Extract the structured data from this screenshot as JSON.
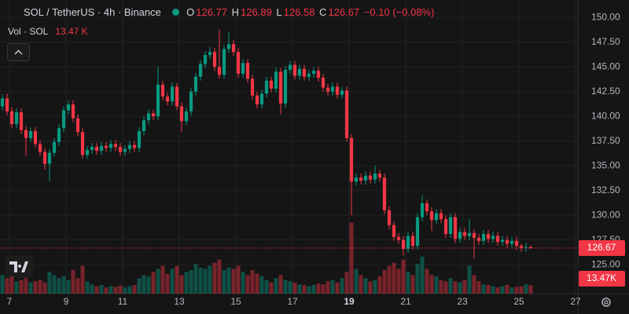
{
  "chart_data": {
    "type": "candlestick",
    "title": "SOL / TetherUS · 4h · Binance",
    "header": {
      "o": "O",
      "h": "H",
      "l": "L",
      "c": "C",
      "change": "−0.10 (−0.08%)"
    },
    "legend": {
      "volume_title": "Vol · SOL",
      "volume": "13.47 K"
    },
    "volume_axis_label": "13.47K",
    "up_color": "#089981",
    "down_color": "#f23645",
    "grid": true,
    "xlim": [
      -0.5,
      122
    ],
    "xticks": [
      {
        "value": 1.5,
        "label": "7"
      },
      {
        "value": 13.5,
        "label": "9"
      },
      {
        "value": 25.5,
        "label": "11"
      },
      {
        "value": 37.5,
        "label": "13"
      },
      {
        "value": 49.5,
        "label": "15"
      },
      {
        "value": 61.5,
        "label": "17"
      },
      {
        "value": 73.5,
        "label": "19"
      },
      {
        "value": 85.5,
        "label": "21"
      },
      {
        "value": 97.5,
        "label": "23"
      },
      {
        "value": 109.5,
        "label": "25"
      },
      {
        "value": 121.5,
        "label": "27"
      }
    ],
    "ylim": [
      122.07,
      151.76
    ],
    "yticks": [
      {
        "value": 125,
        "label": "125.00"
      },
      {
        "value": 127.5,
        "label": "127.50"
      },
      {
        "value": 130,
        "label": "130.00"
      },
      {
        "value": 132.5,
        "label": "132.50"
      },
      {
        "value": 135,
        "label": "135.00"
      },
      {
        "value": 137.5,
        "label": "137.50"
      },
      {
        "value": 140,
        "label": "140.00"
      },
      {
        "value": 142.5,
        "label": "142.50"
      },
      {
        "value": 145,
        "label": "145.00"
      },
      {
        "value": 147.5,
        "label": "147.50"
      },
      {
        "value": 150,
        "label": "150.00"
      }
    ],
    "vlim": [
      0,
      475
    ],
    "open": [
      141.0,
      141.8,
      140.5,
      139.2,
      140.4,
      138.6,
      137.8,
      138.5,
      137.2,
      136.4,
      135.2,
      136.3,
      137.4,
      138.8,
      140.6,
      141.2,
      139.8,
      138.4,
      136.1,
      136.6,
      136.9,
      136.5,
      137.0,
      136.8,
      137.2,
      136.9,
      136.4,
      136.7,
      137.1,
      136.8,
      138.5,
      139.6,
      140.3,
      140.0,
      143.2,
      142.0,
      141.5,
      143.0,
      141.0,
      139.5,
      140.5,
      142.5,
      144.0,
      145.3,
      146.2,
      146.5,
      145.0,
      144.2,
      146.8,
      147.3,
      146.5,
      144.3,
      145.4,
      143.8,
      142.1,
      141.2,
      142.3,
      143.6,
      142.8,
      144.5,
      141.3,
      144.7,
      145.2,
      144.1,
      144.8,
      144.0,
      144.3,
      144.6,
      143.9,
      142.9,
      142.5,
      143.0,
      142.2,
      142.6,
      137.8,
      133.4,
      133.8,
      133.5,
      134.0,
      133.6,
      134.2,
      133.8,
      130.5,
      129.0,
      127.8,
      127.5,
      126.6,
      127.9,
      126.9,
      129.8,
      131.2,
      130.4,
      129.5,
      130.2,
      129.6,
      128.1,
      129.8,
      127.6,
      128.3,
      127.9,
      128.2,
      127.7,
      127.4,
      128.1,
      127.6,
      127.9,
      127.3,
      127.5,
      127.1,
      127.4,
      126.9,
      126.7,
      126.77
    ],
    "high": [
      142.2,
      142.3,
      140.9,
      140.8,
      140.8,
      139.0,
      138.9,
      138.9,
      137.6,
      136.8,
      136.7,
      137.8,
      139.2,
      141.0,
      141.6,
      141.6,
      140.2,
      138.8,
      137.0,
      137.3,
      137.3,
      137.4,
      137.4,
      137.6,
      137.6,
      137.3,
      137.1,
      137.5,
      137.5,
      138.9,
      140.0,
      140.7,
      140.7,
      145.0,
      143.6,
      142.4,
      143.4,
      143.4,
      141.4,
      140.9,
      142.9,
      144.4,
      145.7,
      146.6,
      147.0,
      146.9,
      148.8,
      147.2,
      148.5,
      147.7,
      146.9,
      145.8,
      145.8,
      144.2,
      142.5,
      142.7,
      144.0,
      144.0,
      144.9,
      144.9,
      145.1,
      145.6,
      145.6,
      145.2,
      145.2,
      144.7,
      145.0,
      145.0,
      144.3,
      143.3,
      143.4,
      143.4,
      143.0,
      143.0,
      138.2,
      134.2,
      134.2,
      134.4,
      134.4,
      135.0,
      134.6,
      134.2,
      130.9,
      129.4,
      128.2,
      127.9,
      128.3,
      128.3,
      130.2,
      132.0,
      131.6,
      130.8,
      130.6,
      130.6,
      130.0,
      130.2,
      130.2,
      128.7,
      128.7,
      129.6,
      128.6,
      128.1,
      128.5,
      128.5,
      128.3,
      128.3,
      127.9,
      127.9,
      127.8,
      127.8,
      127.1,
      127.2,
      126.89
    ],
    "low": [
      140.6,
      140.1,
      138.8,
      138.8,
      138.2,
      136.0,
      137.4,
      136.8,
      136.0,
      134.6,
      133.4,
      135.9,
      137.0,
      138.4,
      140.2,
      139.4,
      138.0,
      135.7,
      135.7,
      136.2,
      136.1,
      136.1,
      136.4,
      136.4,
      136.5,
      136.0,
      136.0,
      136.3,
      136.4,
      136.4,
      138.1,
      139.2,
      139.6,
      139.6,
      141.6,
      141.1,
      141.1,
      140.6,
      138.4,
      139.1,
      140.1,
      142.1,
      143.6,
      144.9,
      145.8,
      144.6,
      143.8,
      143.8,
      146.4,
      146.1,
      143.9,
      143.9,
      143.4,
      141.7,
      140.8,
      140.8,
      141.9,
      142.4,
      142.4,
      140.2,
      140.9,
      144.3,
      143.7,
      143.7,
      143.6,
      143.6,
      143.9,
      143.5,
      142.5,
      142.1,
      142.1,
      141.8,
      141.8,
      137.4,
      130.0,
      133.0,
      133.1,
      133.1,
      133.2,
      133.2,
      133.4,
      130.1,
      128.6,
      127.4,
      127.1,
      125.9,
      126.2,
      126.5,
      126.5,
      129.4,
      130.0,
      128.4,
      129.1,
      129.2,
      127.7,
      127.7,
      127.2,
      127.2,
      127.5,
      127.5,
      125.6,
      127.0,
      127.0,
      127.2,
      127.2,
      126.9,
      126.9,
      126.7,
      126.7,
      126.5,
      126.3,
      126.3,
      126.58
    ],
    "close": [
      141.8,
      140.5,
      139.2,
      140.4,
      138.6,
      137.8,
      138.5,
      137.2,
      136.4,
      135.2,
      136.3,
      137.4,
      138.8,
      140.6,
      141.2,
      139.8,
      138.4,
      136.1,
      136.6,
      136.9,
      136.5,
      137.0,
      136.8,
      137.2,
      136.9,
      136.4,
      136.7,
      137.1,
      136.8,
      138.5,
      139.6,
      140.3,
      140.0,
      143.2,
      142.0,
      141.5,
      143.0,
      141.0,
      139.5,
      140.5,
      142.5,
      144.0,
      145.3,
      146.2,
      146.5,
      145.0,
      144.2,
      146.8,
      147.3,
      146.5,
      144.3,
      145.4,
      143.8,
      142.1,
      141.2,
      142.3,
      143.6,
      142.8,
      144.5,
      141.3,
      144.7,
      145.2,
      144.1,
      144.8,
      144.0,
      144.3,
      144.6,
      143.9,
      142.9,
      142.5,
      143.0,
      142.2,
      142.6,
      137.8,
      133.4,
      133.8,
      133.5,
      134.0,
      133.6,
      134.2,
      133.8,
      130.5,
      129.0,
      127.8,
      127.5,
      126.6,
      127.9,
      126.9,
      129.8,
      131.2,
      130.4,
      129.5,
      130.2,
      129.6,
      128.1,
      129.8,
      127.6,
      128.3,
      127.9,
      128.2,
      127.7,
      127.4,
      128.1,
      127.6,
      127.9,
      127.3,
      127.5,
      127.1,
      127.4,
      126.9,
      126.7,
      126.77,
      126.67
    ],
    "volume": [
      30,
      25,
      28,
      20,
      22,
      25,
      18,
      20,
      22,
      18,
      35,
      30,
      25,
      28,
      22,
      38,
      25,
      45,
      20,
      15,
      12,
      14,
      10,
      12,
      11,
      13,
      10,
      12,
      14,
      25,
      30,
      28,
      35,
      40,
      45,
      32,
      40,
      45,
      30,
      35,
      38,
      48,
      42,
      40,
      45,
      50,
      55,
      38,
      42,
      40,
      45,
      35,
      30,
      38,
      32,
      28,
      22,
      18,
      25,
      30,
      22,
      20,
      18,
      15,
      14,
      12,
      14,
      16,
      15,
      20,
      22,
      18,
      25,
      35,
      115,
      40,
      30,
      25,
      20,
      22,
      28,
      38,
      45,
      50,
      40,
      55,
      35,
      30,
      48,
      60,
      40,
      30,
      28,
      22,
      20,
      25,
      20,
      18,
      22,
      45,
      30,
      20,
      15,
      14,
      12,
      10,
      12,
      14,
      10,
      11,
      12,
      15,
      13.47
    ]
  }
}
